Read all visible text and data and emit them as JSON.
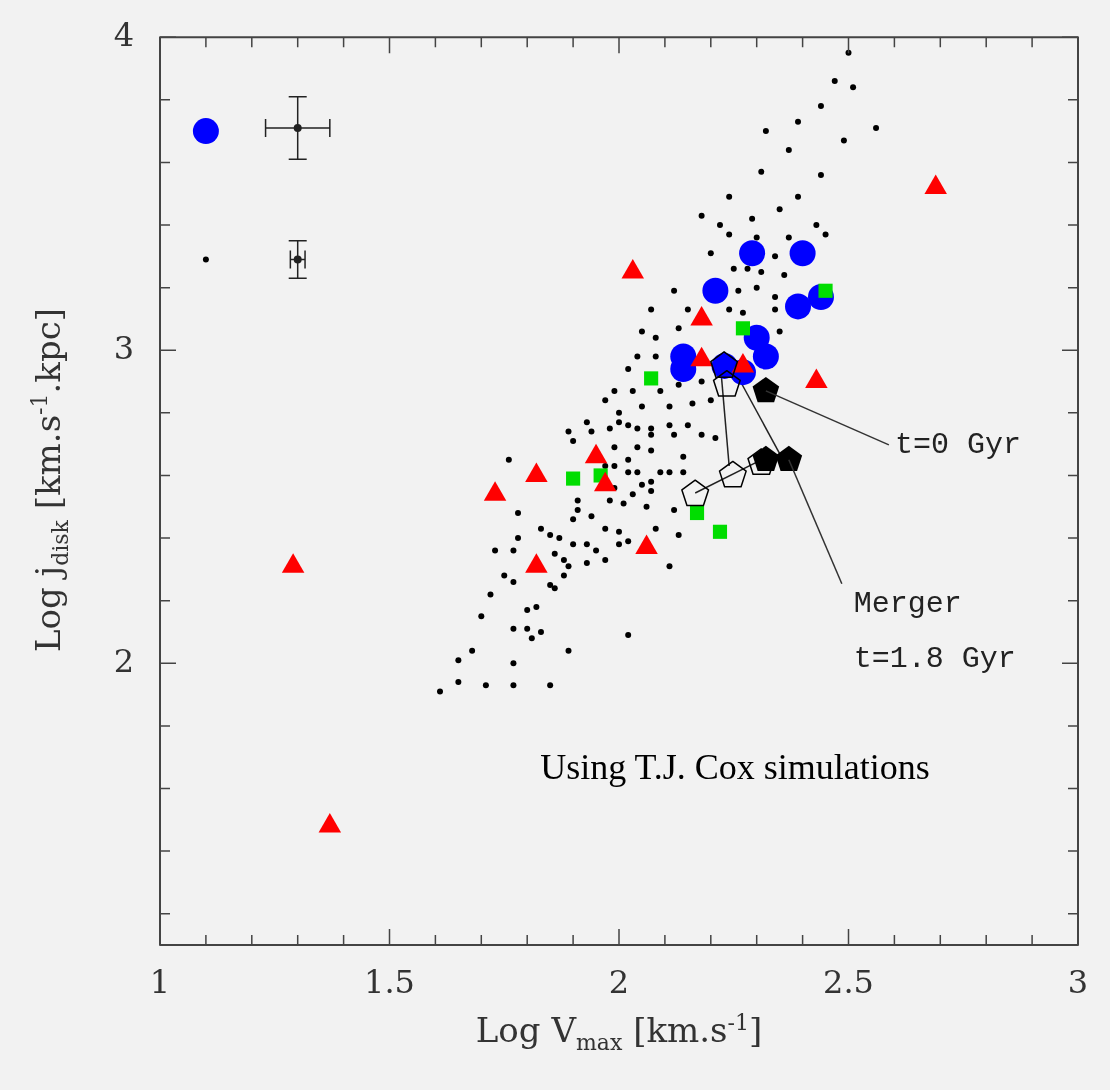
{
  "chart_data": {
    "type": "scatter",
    "xlabel": "Log V$_{max}$ [km.s$^{-1}$]",
    "ylabel": "Log j$_{disk}$ [km.s$^{-1}$.kpc]",
    "xlim": [
      1,
      3
    ],
    "ylim": [
      1.1,
      4
    ],
    "xticks": [
      1,
      {
        "value": 1.1,
        "label": null
      },
      {
        "value": 1.2,
        "label": null
      },
      {
        "value": 1.3,
        "label": null
      },
      {
        "value": 1.4,
        "label": null
      },
      1.5,
      {
        "value": 1.6,
        "label": null
      },
      {
        "value": 1.7,
        "label": null
      },
      {
        "value": 1.8,
        "label": null
      },
      {
        "value": 1.9,
        "label": null
      },
      2,
      {
        "value": 2.1,
        "label": null
      },
      {
        "value": 2.2,
        "label": null
      },
      {
        "value": 2.3,
        "label": null
      },
      {
        "value": 2.4,
        "label": null
      },
      2.5,
      {
        "value": 2.6,
        "label": null
      },
      {
        "value": 2.7,
        "label": null
      },
      {
        "value": 2.8,
        "label": null
      },
      {
        "value": 2.9,
        "label": null
      },
      3
    ],
    "yticks": [
      {
        "value": 1.2,
        "label": null
      },
      {
        "value": 1.4,
        "label": null
      },
      {
        "value": 1.6,
        "label": null
      },
      {
        "value": 1.8,
        "label": null
      },
      2,
      {
        "value": 2.2,
        "label": null
      },
      {
        "value": 2.4,
        "label": null
      },
      {
        "value": 2.6,
        "label": null
      },
      {
        "value": 2.8,
        "label": null
      },
      3,
      {
        "value": 3.2,
        "label": null
      },
      {
        "value": 3.4,
        "label": null
      },
      {
        "value": 3.6,
        "label": null
      },
      {
        "value": 3.8,
        "label": null
      },
      4
    ],
    "annotations": [
      {
        "text": "t=0 Gyr",
        "x": 2.32,
        "y": 2.87
      },
      {
        "text": "Merger\nt=1.8 Gyr",
        "x": 2.37,
        "y": 2.65
      },
      "Using T.J. Cox simulations"
    ],
    "series": [
      {
        "type": "scatter",
        "marker": "circle",
        "color": "#000000",
        "x": [
          1.61,
          1.65,
          1.71,
          1.77,
          1.85,
          1.65,
          1.68,
          1.77,
          1.89,
          2.02,
          1.7,
          1.77,
          1.8,
          1.83,
          1.81,
          1.8,
          1.82,
          1.72,
          1.75,
          1.77,
          1.85,
          1.86,
          1.88,
          1.73,
          1.77,
          1.78,
          1.78,
          1.76,
          1.86,
          1.89,
          1.9,
          1.93,
          1.95,
          1.97,
          1.93,
          1.85,
          1.87,
          1.83,
          1.88,
          2.0,
          2.02,
          2.08,
          2.11,
          2.13,
          2.12,
          1.9,
          1.94,
          1.91,
          1.91,
          1.98,
          2.01,
          2.03,
          2.06,
          1.9,
          1.93,
          1.94,
          1.89,
          2.0,
          2.04,
          2.07,
          2.11,
          2.15,
          2.07,
          2.02,
          1.99,
          2.04,
          2.09,
          2.14,
          2.05,
          2.07,
          1.99,
          2.0,
          1.97,
          2.24,
          2.3,
          2.37,
          2.45,
          2.2,
          2.34,
          2.25,
          2.31,
          2.36,
          2.26,
          2.3,
          2.34,
          2.27,
          2.24,
          2.34,
          2.35,
          2.15,
          2.12,
          2.07,
          2.13,
          2.08,
          2.05,
          2.04,
          2.08,
          2.02,
          1.99,
          2.03,
          2.09,
          2.13,
          2.18,
          2.2,
          2.16,
          2.11,
          2.05,
          2.0,
          1.97,
          1.98,
          2.02,
          2.07,
          2.12,
          2.18,
          2.21,
          1.99,
          2.04,
          1.97,
          2.02,
          2.07,
          2.11,
          2.14,
          2.28,
          2.18,
          2.24,
          2.31,
          2.37,
          2.32,
          2.39,
          2.44,
          2.47,
          2.5,
          2.51,
          2.49,
          2.44,
          2.39,
          2.35,
          2.29,
          2.56,
          2.43,
          2.22,
          1.1
        ],
        "values": [
          1.91,
          1.94,
          1.93,
          1.93,
          1.93,
          2.01,
          2.04,
          2.0,
          2.04,
          2.09,
          2.15,
          2.11,
          2.11,
          2.1,
          2.08,
          2.17,
          2.18,
          2.22,
          2.28,
          2.26,
          2.25,
          2.24,
          2.28,
          2.36,
          2.36,
          2.4,
          2.48,
          2.65,
          2.35,
          2.31,
          2.38,
          2.38,
          2.36,
          2.33,
          2.32,
          2.41,
          2.4,
          2.43,
          2.33,
          2.38,
          2.39,
          2.43,
          2.31,
          2.41,
          2.49,
          2.46,
          2.47,
          2.49,
          2.52,
          2.52,
          2.51,
          2.54,
          2.5,
          2.71,
          2.77,
          2.74,
          2.74,
          2.77,
          2.75,
          2.73,
          2.76,
          2.76,
          2.68,
          2.65,
          2.63,
          2.61,
          2.61,
          2.61,
          2.57,
          2.55,
          2.56,
          2.42,
          2.43,
          3.37,
          3.36,
          3.36,
          3.37,
          3.31,
          3.3,
          3.26,
          3.25,
          3.24,
          3.19,
          3.2,
          3.17,
          3.12,
          3.13,
          3.13,
          3.06,
          3.13,
          3.19,
          3.13,
          3.07,
          3.04,
          3.06,
          2.98,
          2.98,
          2.94,
          2.87,
          2.87,
          2.87,
          2.89,
          2.9,
          2.84,
          2.83,
          2.82,
          2.82,
          2.8,
          2.84,
          2.75,
          2.76,
          2.75,
          2.73,
          2.73,
          2.72,
          2.69,
          2.69,
          2.63,
          2.61,
          2.58,
          2.61,
          2.66,
          3.26,
          3.43,
          3.49,
          3.57,
          3.64,
          3.7,
          3.73,
          3.78,
          3.86,
          3.95,
          3.84,
          3.67,
          3.56,
          3.49,
          3.45,
          3.42,
          3.71,
          3.4,
          3.4,
          3.29
        ]
      },
      {
        "type": "line",
        "marker": "none",
        "color": "#222222",
        "x": [
          2.22,
          2.24
        ],
        "values": [
          2.97,
          2.63
        ]
      },
      {
        "type": "line",
        "marker": "none",
        "color": "#222222",
        "x": [
          2.235,
          2.35
        ],
        "values": [
          2.98,
          2.67
        ]
      },
      {
        "type": "line",
        "marker": "none",
        "color": "#222222",
        "x": [
          2.166,
          2.31
        ],
        "values": [
          2.544,
          2.65
        ]
      },
      {
        "type": "scatter",
        "color": "#000000",
        "x": [
          2.235,
          2.229,
          2.248,
          2.166,
          2.31
        ],
        "values": [
          2.89,
          2.95,
          2.6,
          2.54,
          2.64
        ]
      },
      {
        "type": "scatter",
        "color": "#000000",
        "x": [
          2.32,
          2.32,
          2.37
        ],
        "values": [
          2.87,
          2.65,
          2.65
        ]
      },
      {
        "type": "scatter",
        "marker": "circle",
        "color": "#0000ff",
        "x": [
          2.29,
          2.4,
          2.21,
          2.39,
          2.44,
          2.3,
          2.32,
          2.14,
          2.14,
          2.23,
          2.27,
          1.1
        ],
        "values": [
          3.31,
          3.31,
          3.19,
          3.14,
          3.17,
          3.04,
          2.98,
          2.98,
          2.94,
          2.95,
          2.93,
          3.7
        ]
      },
      {
        "type": "scatter",
        "marker": "square",
        "color": "#00dd00",
        "x": [
          2.07,
          2.27,
          2.45,
          1.9,
          1.96,
          2.17,
          2.22
        ],
        "values": [
          2.91,
          3.07,
          3.19,
          2.59,
          2.6,
          2.48,
          2.42
        ]
      },
      {
        "type": "scatter",
        "marker": "triangle",
        "color": "#ff0000",
        "x": [
          1.29,
          1.37,
          1.73,
          1.82,
          1.82,
          1.95,
          1.97,
          2.06,
          2.03,
          2.18,
          2.18,
          2.27,
          2.43,
          2.69
        ],
        "values": [
          2.31,
          1.48,
          2.54,
          2.6,
          2.31,
          2.66,
          2.57,
          2.37,
          3.25,
          3.1,
          2.97,
          2.95,
          2.9,
          3.52
        ]
      },
      {
        "type": "scatter",
        "color": "#222222",
        "x": [
          1.3,
          1.3
        ],
        "values": [
          3.71,
          3.29
        ],
        "errors": [
          0.1,
          0.06
        ],
        "xerrors": [
          0.07,
          0.016
        ]
      }
    ]
  }
}
